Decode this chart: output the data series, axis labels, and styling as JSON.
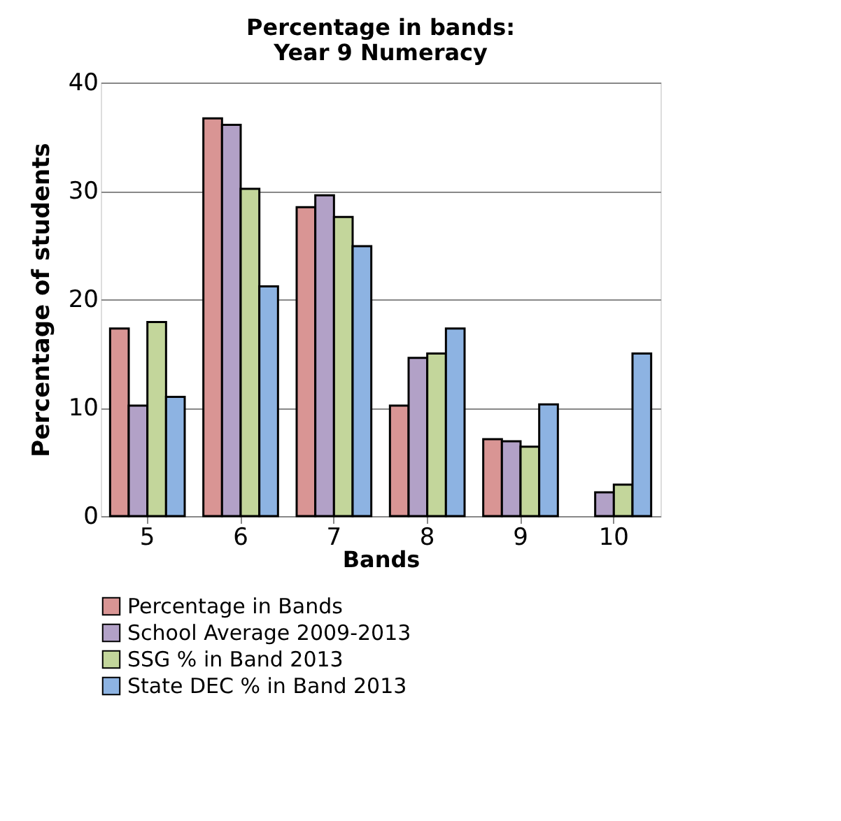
{
  "chart_data": {
    "type": "bar",
    "title": [
      "Percentage in bands:",
      "Year 9 Numeracy"
    ],
    "xlabel": "Bands",
    "ylabel": "Percentage of students",
    "categories": [
      "5",
      "6",
      "7",
      "8",
      "9",
      "10"
    ],
    "series": [
      {
        "name": "Percentage in Bands",
        "color": "#d99594",
        "values": [
          17.3,
          36.7,
          28.5,
          10.2,
          7.1,
          null
        ]
      },
      {
        "name": "School Average 2009-2013",
        "color": "#b2a1c7",
        "values": [
          10.2,
          36.1,
          29.6,
          14.6,
          6.9,
          2.2
        ]
      },
      {
        "name": "SSG % in Band 2013",
        "color": "#c3d69b",
        "values": [
          17.9,
          30.2,
          27.6,
          15.0,
          6.4,
          2.9
        ]
      },
      {
        "name": "State DEC % in Band 2013",
        "color": "#8db3e2",
        "values": [
          11.0,
          21.2,
          24.9,
          17.3,
          10.3,
          15.0
        ]
      }
    ],
    "ylim": [
      0,
      40
    ],
    "yticks": [
      0,
      10,
      20,
      30,
      40
    ],
    "grid": "y",
    "legend": "bottom"
  }
}
